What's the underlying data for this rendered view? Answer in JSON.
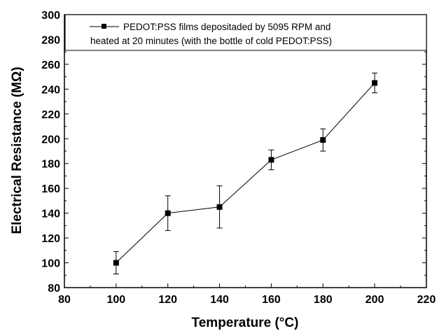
{
  "chart_data": {
    "type": "line",
    "xlabel": "Temperature (°C)",
    "ylabel": "Electrical Resistance (MΩ)",
    "xlim": [
      80,
      220
    ],
    "ylim": [
      80,
      300
    ],
    "xticks": [
      80,
      100,
      120,
      140,
      160,
      180,
      200,
      220
    ],
    "yticks": [
      80,
      100,
      120,
      140,
      160,
      180,
      200,
      220,
      240,
      260,
      280,
      300
    ],
    "grid": false,
    "legend_position": "top",
    "series": [
      {
        "name_lines": [
          "PEDOT:PSS films depositaded by 5095 RPM and",
          "heated at 20 minutes (with the bottle of cold PEDOT:PSS)"
        ],
        "marker": "square",
        "color": "#000000",
        "x": [
          100,
          120,
          140,
          160,
          180,
          200
        ],
        "y": [
          100,
          140,
          145,
          183,
          199,
          245
        ],
        "err_low": [
          91,
          126,
          128,
          175,
          190,
          237
        ],
        "err_high": [
          109,
          154,
          162,
          191,
          208,
          253
        ]
      }
    ]
  }
}
